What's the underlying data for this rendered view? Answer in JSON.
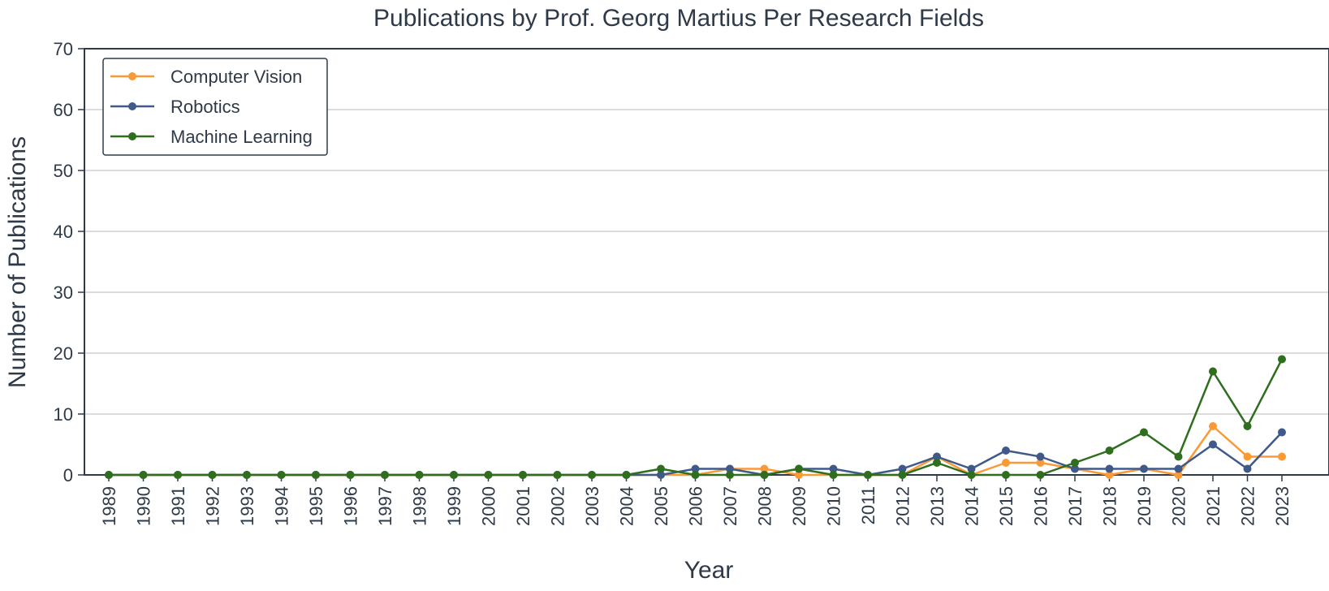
{
  "chart_data": {
    "type": "line",
    "title": "Publications by Prof. Georg Martius Per Research Fields",
    "xlabel": "Year",
    "ylabel": "Number of Publications",
    "ylim": [
      0,
      70
    ],
    "yticks": [
      0,
      10,
      20,
      30,
      40,
      50,
      60,
      70
    ],
    "grid": "horizontal",
    "legend_position": "top-left",
    "categories": [
      "1989",
      "1990",
      "1991",
      "1992",
      "1993",
      "1994",
      "1995",
      "1996",
      "1997",
      "1998",
      "1999",
      "2000",
      "2001",
      "2002",
      "2003",
      "2004",
      "2005",
      "2006",
      "2007",
      "2008",
      "2009",
      "2010",
      "2011",
      "2012",
      "2013",
      "2014",
      "2015",
      "2016",
      "2017",
      "2018",
      "2019",
      "2020",
      "2021",
      "2022",
      "2023"
    ],
    "series": [
      {
        "name": "Computer Vision",
        "color": "#f99a37",
        "values": [
          0,
          0,
          0,
          0,
          0,
          0,
          0,
          0,
          0,
          0,
          0,
          0,
          0,
          0,
          0,
          0,
          0,
          0,
          1,
          1,
          0,
          0,
          0,
          0,
          3,
          0,
          2,
          2,
          1,
          0,
          1,
          0,
          8,
          3,
          3
        ]
      },
      {
        "name": "Robotics",
        "color": "#3f5a8a",
        "values": [
          0,
          0,
          0,
          0,
          0,
          0,
          0,
          0,
          0,
          0,
          0,
          0,
          0,
          0,
          0,
          0,
          0,
          1,
          1,
          0,
          1,
          1,
          0,
          1,
          3,
          1,
          4,
          3,
          1,
          1,
          1,
          1,
          5,
          1,
          7
        ]
      },
      {
        "name": "Machine Learning",
        "color": "#2e6e1e",
        "values": [
          0,
          0,
          0,
          0,
          0,
          0,
          0,
          0,
          0,
          0,
          0,
          0,
          0,
          0,
          0,
          0,
          1,
          0,
          0,
          0,
          1,
          0,
          0,
          0,
          2,
          0,
          0,
          0,
          2,
          4,
          7,
          3,
          17,
          8,
          19
        ]
      }
    ]
  }
}
